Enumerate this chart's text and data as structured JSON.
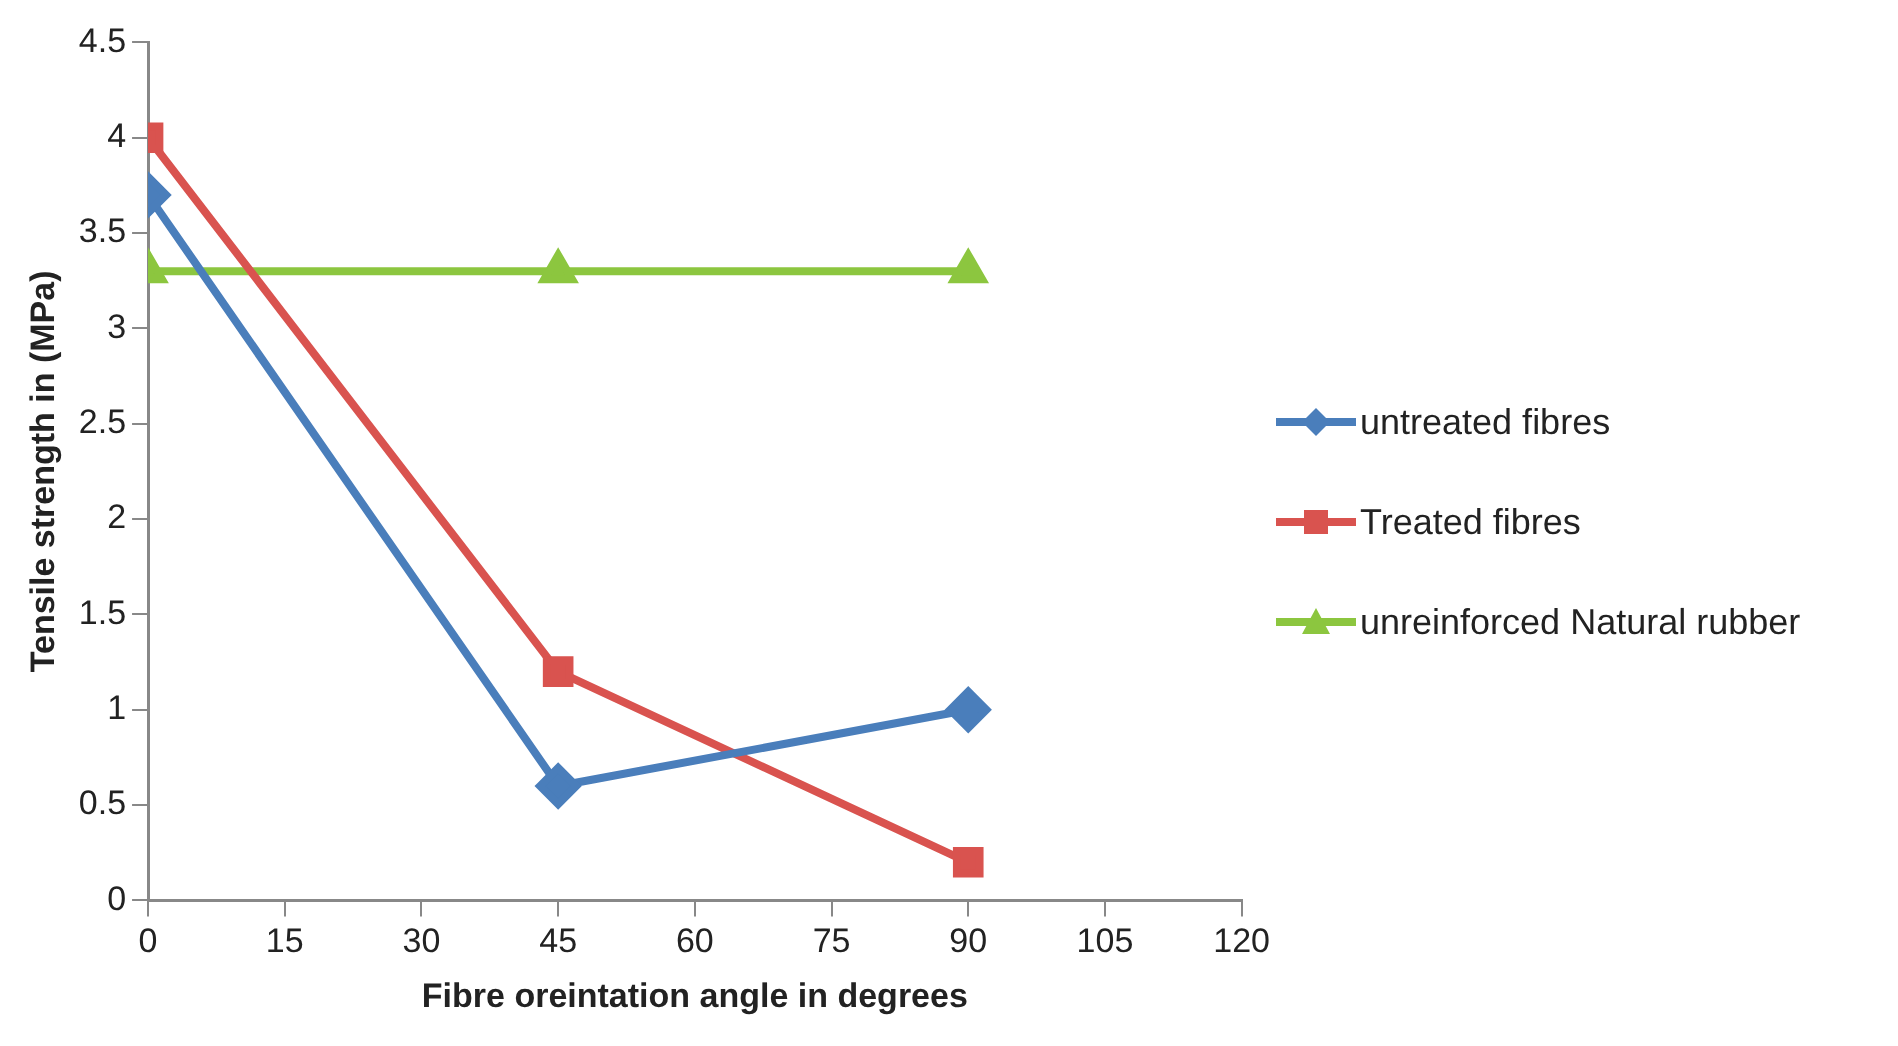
{
  "chart_data": {
    "type": "line",
    "xlabel": "Fibre oreintation angle in degrees",
    "ylabel": "Tensile strength in (MPa)",
    "x": [
      0,
      45,
      90
    ],
    "series": [
      {
        "name": "untreated fibres",
        "color": "#4a7ebb",
        "values": [
          3.7,
          0.6,
          1.0
        ],
        "marker": "diamond"
      },
      {
        "name": "Treated fibres",
        "color": "#d9534f",
        "values": [
          4.0,
          1.2,
          0.2
        ],
        "marker": "square"
      },
      {
        "name": "unreinforced Natural rubber",
        "color": "#8cc63f",
        "values": [
          3.3,
          3.3,
          3.3
        ],
        "marker": "triangle"
      }
    ],
    "xlim": [
      0,
      120
    ],
    "xticks": [
      0,
      15,
      30,
      45,
      60,
      75,
      90,
      105,
      120
    ],
    "ylim": [
      0,
      4.5
    ],
    "yticks": [
      0,
      0.5,
      1,
      1.5,
      2,
      2.5,
      3,
      3.5,
      4,
      4.5
    ],
    "grid": false,
    "legend": "right",
    "line_style": "solid"
  }
}
